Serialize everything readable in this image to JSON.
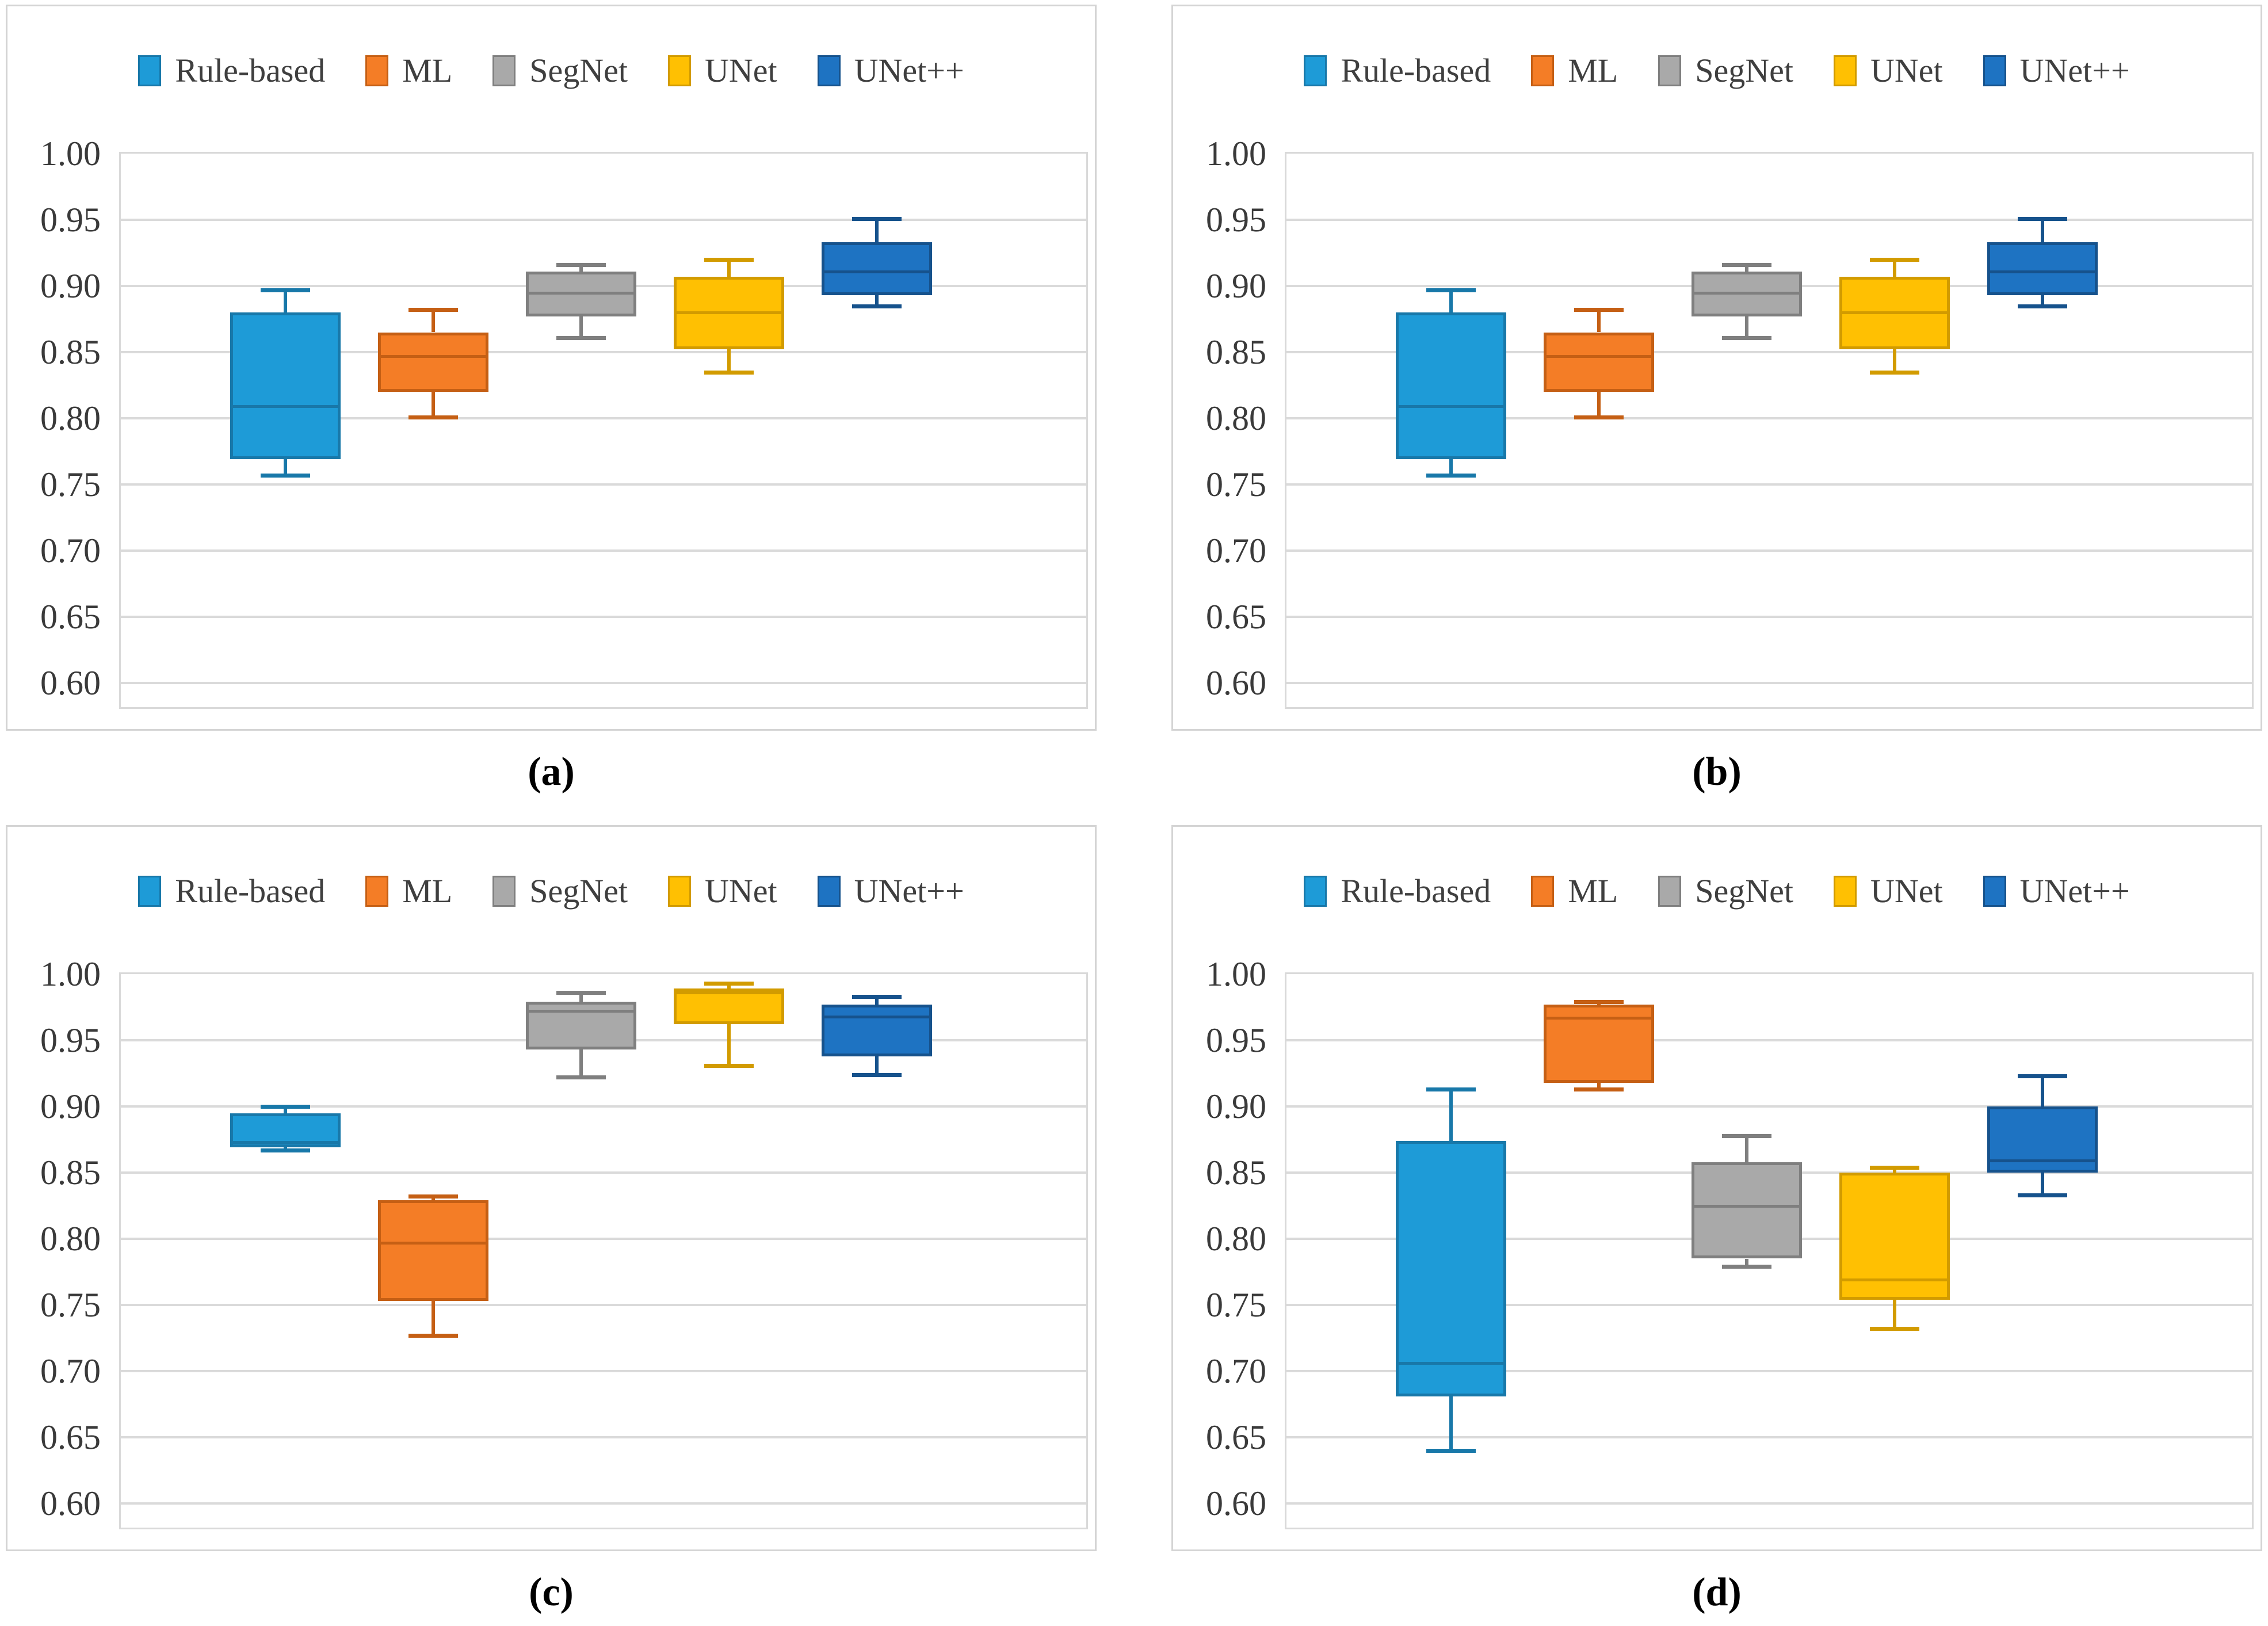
{
  "figure": {
    "captions": {
      "a": "(a)",
      "b": "(b)",
      "c": "(c)",
      "d": "(d)"
    }
  },
  "legend": [
    {
      "label": "Rule-based",
      "color": "#1E9BD7",
      "border": "#1878A9"
    },
    {
      "label": "ML",
      "color": "#F47D26",
      "border": "#C55F14"
    },
    {
      "label": "SegNet",
      "color": "#A9A9A9",
      "border": "#7F7F7F"
    },
    {
      "label": "UNet",
      "color": "#FFC002",
      "border": "#D29B00"
    },
    {
      "label": "UNet++",
      "color": "#1E73C2",
      "border": "#16528C"
    }
  ],
  "axis": {
    "tick_labels": [
      "1.00",
      "0.95",
      "0.90",
      "0.85",
      "0.80",
      "0.75",
      "0.70",
      "0.65",
      "0.60"
    ],
    "tick_values": [
      1.0,
      0.95,
      0.9,
      0.85,
      0.8,
      0.75,
      0.7,
      0.65,
      0.6
    ],
    "max": 1.0,
    "min": 0.6,
    "grid": "horizontal"
  },
  "chart_data": [
    {
      "id": "a",
      "type": "box",
      "title": "(a)",
      "legend_position": "top",
      "ylim": [
        0.58,
        1.0
      ],
      "series": [
        {
          "name": "Rule-based",
          "min": 0.757,
          "q1": 0.769,
          "median": 0.809,
          "q3": 0.88,
          "max": 0.897
        },
        {
          "name": "ML",
          "min": 0.801,
          "q1": 0.82,
          "median": 0.847,
          "q3": 0.865,
          "max": 0.882
        },
        {
          "name": "SegNet",
          "min": 0.861,
          "q1": 0.877,
          "median": 0.895,
          "q3": 0.911,
          "max": 0.916
        },
        {
          "name": "UNet",
          "min": 0.835,
          "q1": 0.852,
          "median": 0.88,
          "q3": 0.907,
          "max": 0.92
        },
        {
          "name": "UNet++",
          "min": 0.885,
          "q1": 0.893,
          "median": 0.911,
          "q3": 0.933,
          "max": 0.951
        }
      ]
    },
    {
      "id": "b",
      "type": "box",
      "title": "(b)",
      "legend_position": "top",
      "ylim": [
        0.58,
        1.0
      ],
      "series": [
        {
          "name": "Rule-based",
          "min": 0.757,
          "q1": 0.769,
          "median": 0.809,
          "q3": 0.88,
          "max": 0.897
        },
        {
          "name": "ML",
          "min": 0.801,
          "q1": 0.82,
          "median": 0.847,
          "q3": 0.865,
          "max": 0.882
        },
        {
          "name": "SegNet",
          "min": 0.861,
          "q1": 0.877,
          "median": 0.895,
          "q3": 0.911,
          "max": 0.916
        },
        {
          "name": "UNet",
          "min": 0.835,
          "q1": 0.852,
          "median": 0.88,
          "q3": 0.907,
          "max": 0.92
        },
        {
          "name": "UNet++",
          "min": 0.885,
          "q1": 0.893,
          "median": 0.911,
          "q3": 0.933,
          "max": 0.951
        }
      ]
    },
    {
      "id": "c",
      "type": "box",
      "title": "(c)",
      "legend_position": "top",
      "ylim": [
        0.58,
        1.0
      ],
      "series": [
        {
          "name": "Rule-based",
          "min": 0.867,
          "q1": 0.869,
          "median": 0.873,
          "q3": 0.895,
          "max": 0.9
        },
        {
          "name": "ML",
          "min": 0.727,
          "q1": 0.753,
          "median": 0.797,
          "q3": 0.829,
          "max": 0.832
        },
        {
          "name": "SegNet",
          "min": 0.922,
          "q1": 0.943,
          "median": 0.972,
          "q3": 0.979,
          "max": 0.986
        },
        {
          "name": "UNet",
          "min": 0.931,
          "q1": 0.962,
          "median": 0.986,
          "q3": 0.989,
          "max": 0.993
        },
        {
          "name": "UNet++",
          "min": 0.924,
          "q1": 0.938,
          "median": 0.968,
          "q3": 0.977,
          "max": 0.983
        }
      ]
    },
    {
      "id": "d",
      "type": "box",
      "title": "(d)",
      "legend_position": "top",
      "ylim": [
        0.58,
        1.0
      ],
      "series": [
        {
          "name": "Rule-based",
          "min": 0.64,
          "q1": 0.681,
          "median": 0.706,
          "q3": 0.874,
          "max": 0.913
        },
        {
          "name": "ML",
          "min": 0.913,
          "q1": 0.918,
          "median": 0.967,
          "q3": 0.977,
          "max": 0.979
        },
        {
          "name": "SegNet",
          "min": 0.779,
          "q1": 0.785,
          "median": 0.825,
          "q3": 0.858,
          "max": 0.878
        },
        {
          "name": "UNet",
          "min": 0.732,
          "q1": 0.754,
          "median": 0.769,
          "q3": 0.85,
          "max": 0.854
        },
        {
          "name": "UNet++",
          "min": 0.833,
          "q1": 0.85,
          "median": 0.859,
          "q3": 0.9,
          "max": 0.923
        }
      ]
    }
  ]
}
